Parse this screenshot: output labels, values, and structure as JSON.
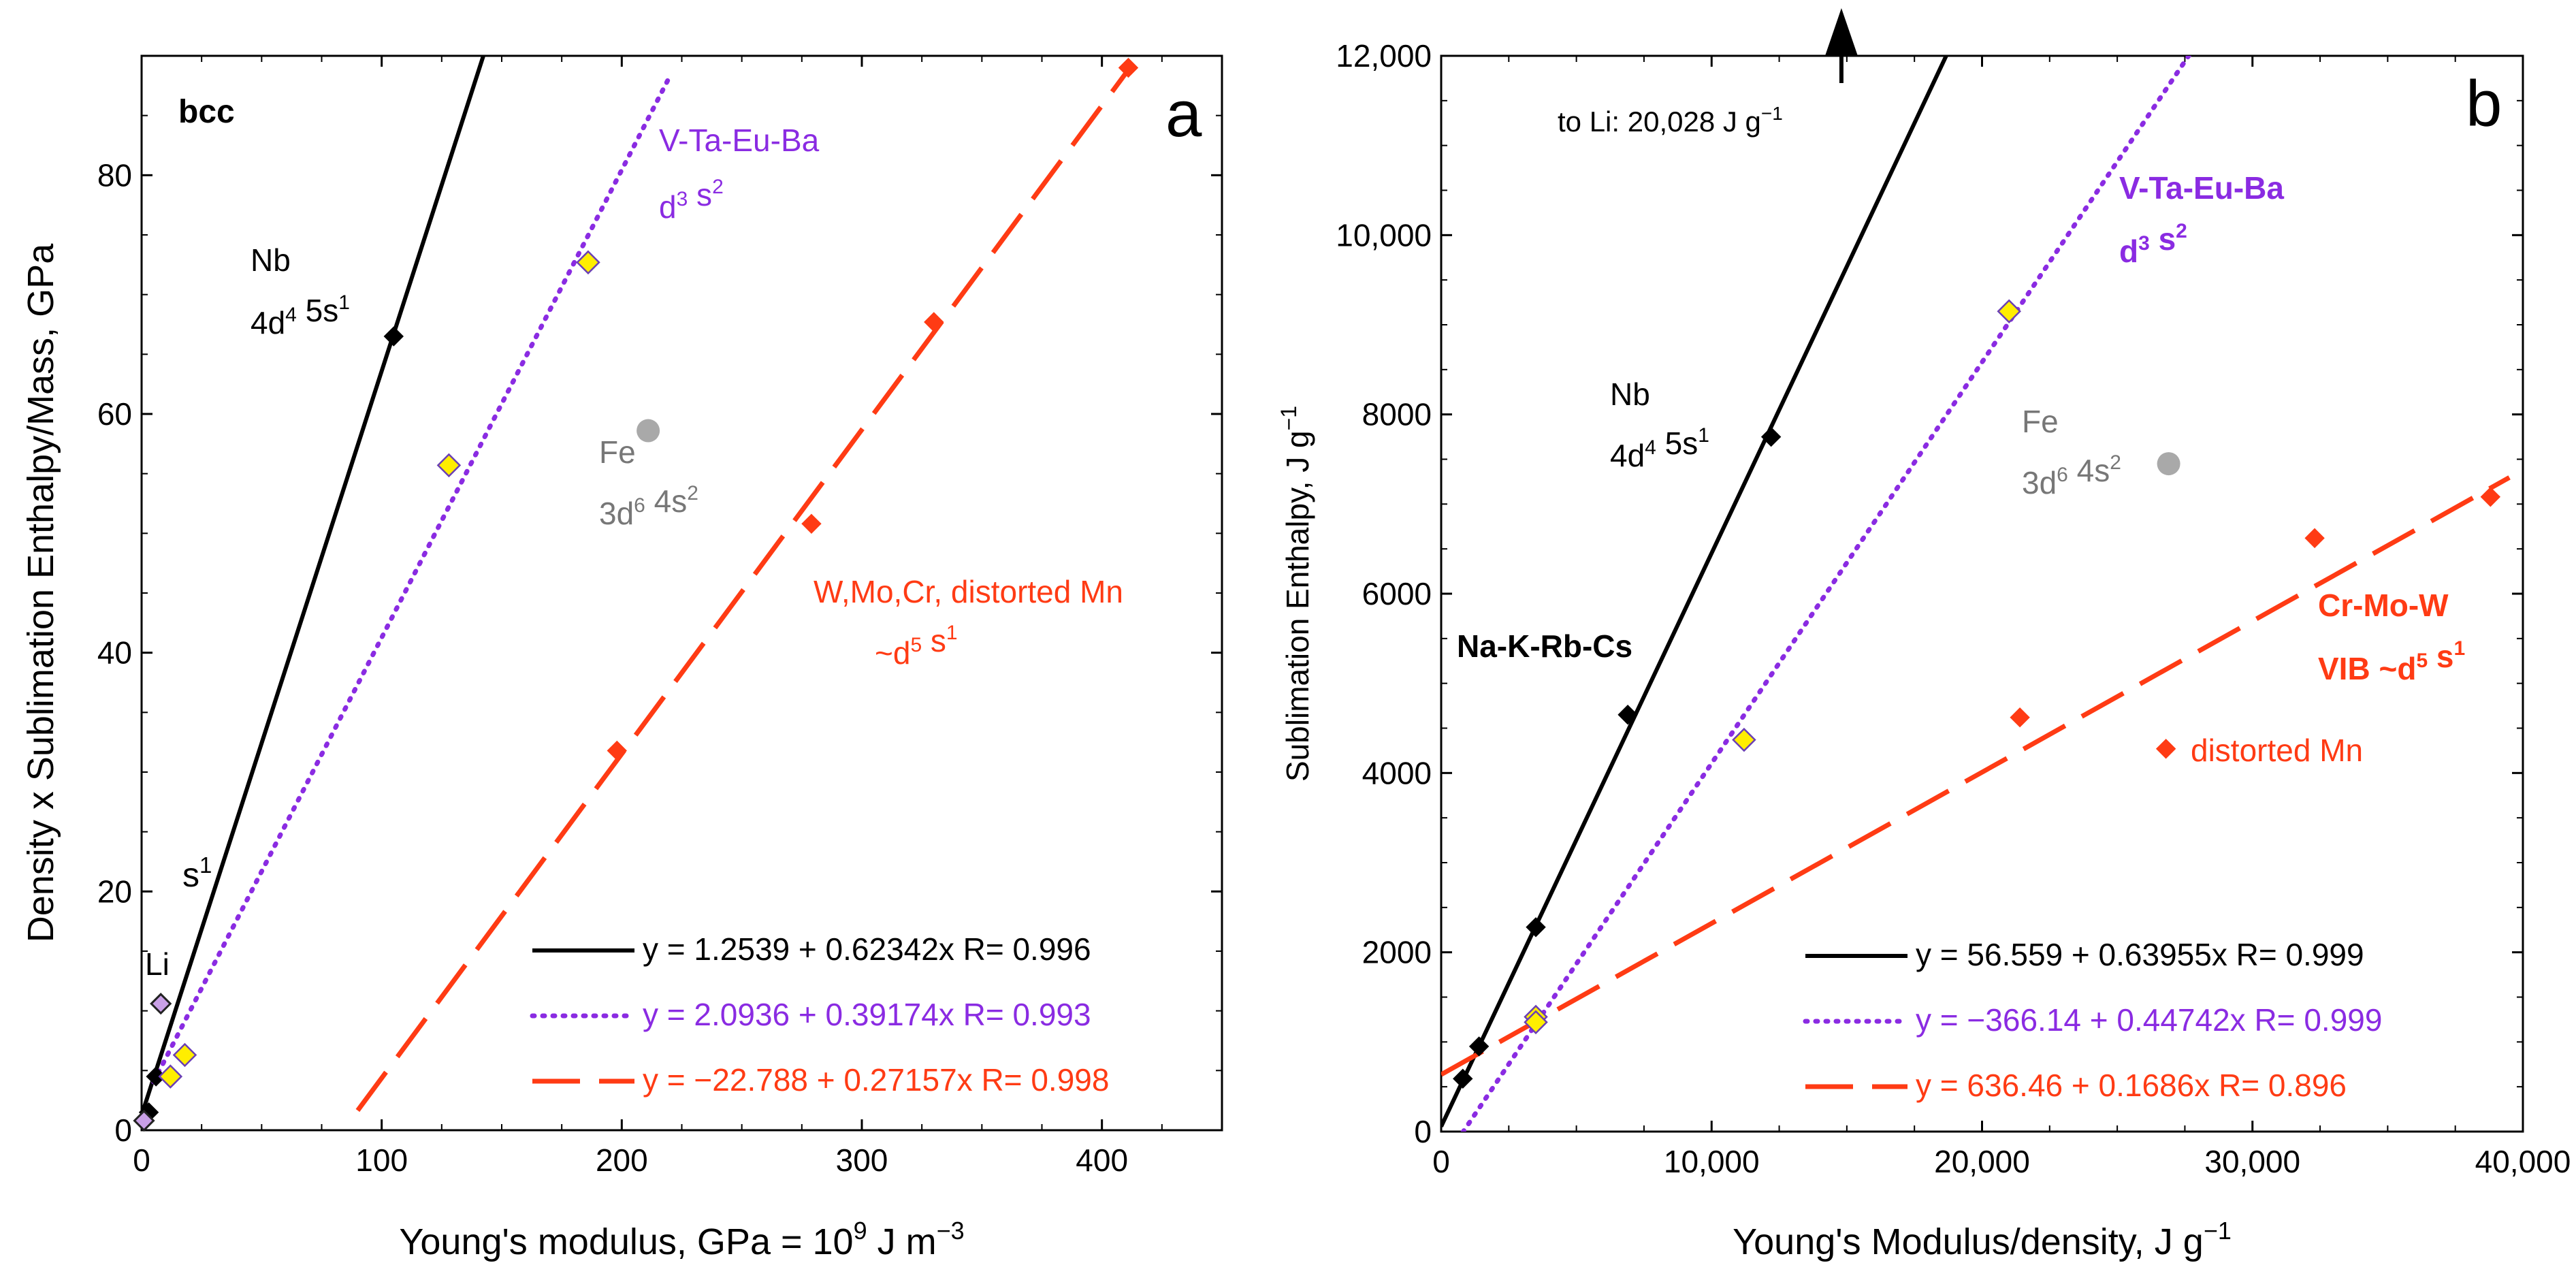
{
  "colors": {
    "black": "#000000",
    "purple": "#8a2be2",
    "red": "#ff3b14",
    "gray": "#777777",
    "gray_marker": "#a9a9a9",
    "yellow_marker": "#ffee00",
    "marker_edge_purple": "#6a3fb5"
  },
  "chart_data": [
    {
      "type": "scatter",
      "panel_letter": "a",
      "xlabel": "Young's modulus, GPa = 10^9 J m^−3",
      "xlabel_parts": {
        "base": "Young's modulus, GPa = 10",
        "sup": "9",
        "tail": " J m",
        "sup2": "−3"
      },
      "ylabel": "Density x Sublimation Enthalpy/Mass, GPa",
      "xlim": [
        0,
        450
      ],
      "ylim": [
        0,
        90
      ],
      "xticks": [
        0,
        100,
        200,
        300,
        400
      ],
      "xtick_labels": [
        "0",
        "100",
        "200",
        "300",
        "400"
      ],
      "yticks": [
        0,
        20,
        40,
        60,
        80
      ],
      "ytick_labels": [
        "0",
        "20",
        "40",
        "60",
        "80"
      ],
      "grid": false,
      "legend_position": "bottom-right",
      "series": [
        {
          "name": "Nb / s1",
          "color": "#000000",
          "marker": "diamond",
          "line": "solid",
          "points": [
            [
              3,
              1.5
            ],
            [
              6,
              4.5
            ],
            [
              105,
              66.5
            ]
          ],
          "fit": {
            "intercept": 1.2539,
            "slope": 0.62342,
            "x_range": [
              0,
              143
            ]
          },
          "legend_label": "y = 1.2539 + 0.62342x   R= 0.996"
        },
        {
          "name": "V-Ta-Eu-Ba",
          "color": "#8a2be2",
          "marker": "diamond-yellow",
          "line": "dotted",
          "points": [
            [
              12,
              4.5
            ],
            [
              18,
              6.3
            ],
            [
              128,
              55.7
            ],
            [
              186,
              72.7
            ]
          ],
          "fit": {
            "intercept": 2.0936,
            "slope": 0.39174,
            "x_range": [
              5,
              220
            ]
          },
          "legend_label": "y = 2.0936 + 0.39174x   R= 0.993"
        },
        {
          "name": "W,Mo,Cr, distorted Mn",
          "color": "#ff3b14",
          "marker": "diamond",
          "line": "dashed",
          "points": [
            [
              198,
              31.8
            ],
            [
              279,
              50.8
            ],
            [
              330,
              67.7
            ],
            [
              411,
              89
            ]
          ],
          "fit": {
            "intercept": -22.788,
            "slope": 0.27157,
            "x_range": [
              90,
              412
            ]
          },
          "legend_label": "y = −22.788 + 0.27157x   R= 0.998"
        }
      ],
      "extra_points": [
        {
          "label": "Li",
          "x": 8,
          "y": 10.6,
          "marker": "diamond-purple"
        },
        {
          "label": "",
          "x": 1,
          "y": 0.8,
          "marker": "diamond-purple"
        },
        {
          "label": "Fe",
          "x": 211,
          "y": 58.6,
          "marker": "circle-gray"
        }
      ],
      "annotations": {
        "structure": "bcc",
        "nb_name": "Nb",
        "nb_config": {
          "a": "4d",
          "a_sup": "4",
          "b": " 5s",
          "b_sup": "1"
        },
        "vta_name": "V-Ta-Eu-Ba",
        "vta_config": {
          "a": "d",
          "a_sup": "3",
          "b": " s",
          "b_sup": "2"
        },
        "fe_name": "Fe",
        "fe_config": {
          "a": "3d",
          "a_sup": "6",
          "b": " 4s",
          "b_sup": "2"
        },
        "wmo_name": "W,Mo,Cr, distorted Mn",
        "wmo_config": {
          "a": "~d",
          "a_sup": "5",
          "b": " s",
          "b_sup": "1"
        },
        "s1": {
          "a": "s",
          "a_sup": "1"
        },
        "li": "Li"
      }
    },
    {
      "type": "scatter",
      "panel_letter": "b",
      "xlabel": "Young's Modulus/density, J g^−1",
      "xlabel_parts": {
        "base": "Young's Modulus/density, J g",
        "sup": "−1"
      },
      "ylabel": "Sublimation Enthalpy, J g^−1",
      "ylabel_parts": {
        "base": "Sublimation Enthalpy, J g",
        "sup": "−1"
      },
      "xlim": [
        0,
        40000
      ],
      "ylim": [
        0,
        12000
      ],
      "xticks": [
        0,
        10000,
        20000,
        30000,
        40000
      ],
      "xtick_labels": [
        "0",
        "10,000",
        "20,000",
        "30,000",
        "40,000"
      ],
      "yticks": [
        0,
        2000,
        4000,
        6000,
        8000,
        10000,
        12000
      ],
      "ytick_labels": [
        "0",
        "2000",
        "4000",
        "6000",
        "8000",
        "10,000",
        "12,000"
      ],
      "grid": false,
      "legend_position": "bottom-right",
      "series": [
        {
          "name": "Na-K-Rb-Cs / Nb",
          "color": "#000000",
          "marker": "diamond",
          "line": "solid",
          "points": [
            [
              800,
              590
            ],
            [
              1400,
              950
            ],
            [
              3500,
              2280
            ],
            [
              6900,
              4650
            ],
            [
              12200,
              7750
            ]
          ],
          "fit": {
            "intercept": 56.559,
            "slope": 0.63955,
            "x_range": [
              0,
              18700
            ]
          },
          "legend_label": "y = 56.559 + 0.63955x   R= 0.999"
        },
        {
          "name": "V-Ta-Eu-Ba",
          "color": "#8a2be2",
          "marker": "diamond-yellow",
          "line": "dotted",
          "points": [
            [
              3500,
              1280
            ],
            [
              3500,
              1220
            ],
            [
              11200,
              4370
            ],
            [
              21000,
              9150
            ]
          ],
          "fit": {
            "intercept": -366.14,
            "slope": 0.44742,
            "x_range": [
              800,
              27700
            ]
          },
          "legend_label": "y = −366.14 + 0.44742x   R= 0.999"
        },
        {
          "name": "Cr-Mo-W",
          "color": "#ff3b14",
          "marker": "diamond",
          "line": "dashed",
          "points": [
            [
              21400,
              4620
            ],
            [
              32300,
              6620
            ],
            [
              38800,
              7080
            ]
          ],
          "fit": {
            "intercept": 636.46,
            "slope": 0.1686,
            "x_range": [
              0,
              39500
            ]
          },
          "legend_label": "y = 636.46 + 0.1686x   R= 0.896"
        }
      ],
      "extra_points": [
        {
          "label": "distorted Mn",
          "x": 26800,
          "y": 4270,
          "marker": "diamond-red"
        },
        {
          "label": "Fe",
          "x": 26900,
          "y": 7450,
          "marker": "circle-gray"
        }
      ],
      "annotations": {
        "li_arrow_x": 14800,
        "li_text": {
          "a": "to Li:  20,028 J g",
          "a_sup": "−1"
        },
        "nb_name": "Nb",
        "nb_config": {
          "a": "4d",
          "a_sup": "4",
          "b": " 5s",
          "b_sup": "1"
        },
        "vta_name": "V-Ta-Eu-Ba",
        "vta_config": {
          "a": "d",
          "a_sup": "3",
          "b": " s",
          "b_sup": "2"
        },
        "fe_name": "Fe",
        "fe_config": {
          "a": "3d",
          "a_sup": "6",
          "b": " 4s",
          "b_sup": "2"
        },
        "alkali": "Na-K-Rb-Cs",
        "crmow_name": "Cr-Mo-W",
        "crmow_config": {
          "a": "VIB  ~d",
          "a_sup": "5",
          "b": " s",
          "b_sup": "1"
        },
        "distorted_mn": "distorted Mn"
      }
    }
  ]
}
